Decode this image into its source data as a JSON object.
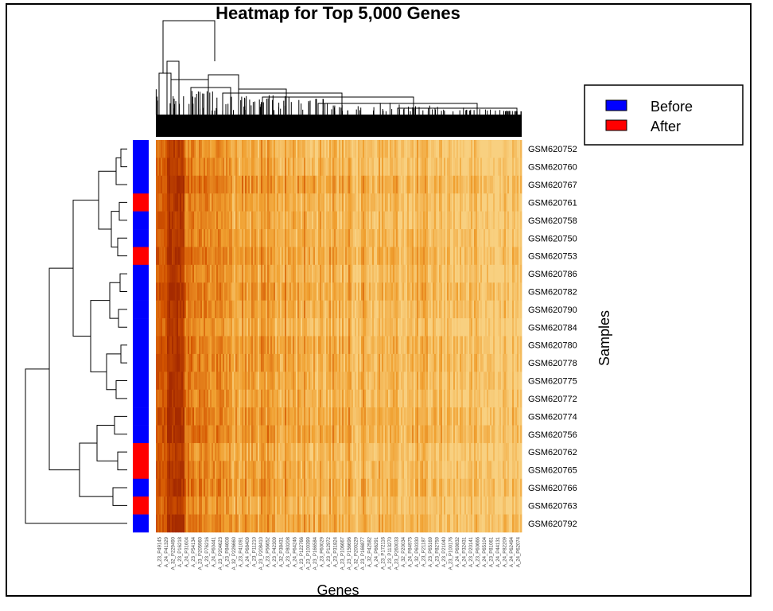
{
  "chart_data": {
    "type": "heatmap",
    "title": "Heatmap for Top 5,000 Genes",
    "xlabel": "Genes",
    "ylabel": "Samples",
    "colormap": [
      "#a52a00",
      "#d45500",
      "#f0a030",
      "#f8d080"
    ],
    "legend": {
      "position": "top-right",
      "entries": [
        {
          "label": "Before",
          "color": "#0000ff"
        },
        {
          "label": "After",
          "color": "#ff0000"
        }
      ]
    },
    "row_labels": [
      "GSM620752",
      "GSM620760",
      "GSM620767",
      "GSM620761",
      "GSM620758",
      "GSM620750",
      "GSM620753",
      "GSM620786",
      "GSM620782",
      "GSM620790",
      "GSM620784",
      "GSM620780",
      "GSM620778",
      "GSM620775",
      "GSM620772",
      "GSM620774",
      "GSM620756",
      "GSM620762",
      "GSM620765",
      "GSM620766",
      "GSM620763",
      "GSM620792"
    ],
    "column_labels": [
      "A_23_P49145",
      "A_24_P41329",
      "A_32_P229490",
      "A_23_P16218",
      "A_24_P31604",
      "A_23_P54134",
      "A_23_P205960",
      "A_23_P76216",
      "A_24_P60441",
      "A_23_P204623",
      "A_23_P84608",
      "A_32_P226660",
      "A_23_P41091",
      "A_24_P68409",
      "A_23_P11210",
      "A_23_P208410",
      "A_23_P56652",
      "A_23_P42309",
      "A_32_P38431",
      "A_23_P80208",
      "A_24_P64246",
      "A_23_P122766",
      "A_23_P100399",
      "A_23_P166584",
      "A_23_P60029",
      "A_23_P12972",
      "A_23_P31824",
      "A_23_P106667",
      "A_23_P156696",
      "A_32_P200229",
      "A_23_P166877",
      "A_32_P42582",
      "A_24_P66291",
      "A_23_P172116",
      "A_23_P113270",
      "A_23_P260033",
      "A_32_P20034",
      "A_24_P84975",
      "A_32_P60330",
      "A_23_P21187",
      "A_23_P65169",
      "A_23_P82759",
      "A_23_P21040",
      "A_23_P100176",
      "A_24_P69832",
      "A_24_P32431",
      "A_23_P20141",
      "A_23_P60666",
      "A_24_P65104",
      "A_23_P81061",
      "A_24_P44131",
      "A_24_P82209",
      "A_24_P62494",
      "A_24_P62074"
    ],
    "row_groups": [
      "Before",
      "Before",
      "Before",
      "After",
      "Before",
      "Before",
      "After",
      "Before",
      "Before",
      "Before",
      "Before",
      "Before",
      "Before",
      "Before",
      "Before",
      "Before",
      "Before",
      "After",
      "After",
      "Before",
      "After",
      "Before"
    ],
    "expression_profile_note": "",
    "grid": false
  }
}
